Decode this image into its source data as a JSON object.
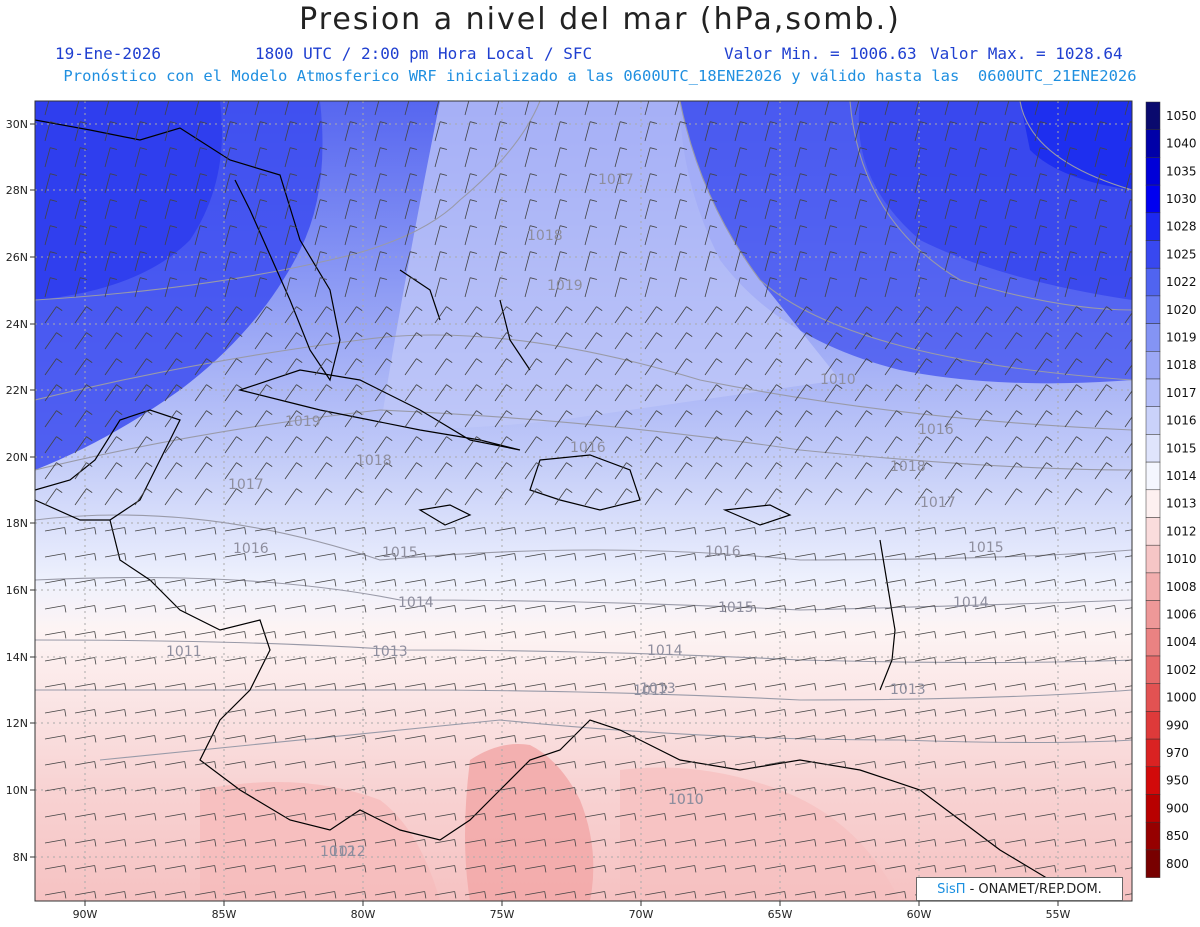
{
  "header": {
    "title": "Presion a nivel del mar (hPa,somb.)",
    "date": "19-Ene-2026",
    "time": "1800 UTC / 2:00 pm Hora Local / SFC",
    "min": "Valor Min. = 1006.63",
    "max": "Valor Max. = 1028.64",
    "model_line": "Pronóstico con el Modelo Atmosferico WRF inicializado a las 0600UTC_18ENE2026 y válido hasta las  0600UTC_21ENE2026"
  },
  "axes": {
    "lat_labels": [
      "30N",
      "28N",
      "26N",
      "24N",
      "22N",
      "20N",
      "18N",
      "16N",
      "14N",
      "12N",
      "10N",
      "8N"
    ],
    "lon_labels": [
      "90W",
      "85W",
      "80W",
      "75W",
      "70W",
      "65W",
      "60W",
      "55W"
    ]
  },
  "legend": {
    "levels": [
      "1050",
      "1040",
      "1035",
      "1030",
      "1028",
      "1025",
      "1022",
      "1020",
      "1019",
      "1018",
      "1017",
      "1016",
      "1015",
      "1014",
      "1013",
      "1012",
      "1010",
      "1008",
      "1006",
      "1004",
      "1002",
      "1000",
      "990",
      "970",
      "950",
      "900",
      "850",
      "800"
    ],
    "colors": [
      "#0a0a6e",
      "#0000a8",
      "#0000d8",
      "#0000f0",
      "#1c28f0",
      "#3848f0",
      "#5064f0",
      "#6a7cf2",
      "#8494f4",
      "#9ca8f6",
      "#b4bef8",
      "#cad2fa",
      "#dfe4fc",
      "#f4f6fe",
      "#fdf0f0",
      "#fadcdc",
      "#f6c6c6",
      "#f2aeae",
      "#ee9898",
      "#ea8282",
      "#e66a6a",
      "#e25252",
      "#de3a3a",
      "#da2222",
      "#d20a0a",
      "#b80000",
      "#960000",
      "#780000"
    ]
  },
  "isobar_labels": [
    "1017",
    "1018",
    "1019",
    "1019",
    "1018",
    "1017",
    "1016",
    "1015",
    "1014",
    "1013",
    "1012",
    "1011",
    "1010",
    "1016",
    "1016",
    "1015",
    "1014",
    "1013",
    "1012",
    "1010",
    "1018",
    "1017",
    "1016",
    "1015",
    "1014",
    "1013",
    "1012",
    "1010"
  ],
  "credit": {
    "brand": "SisΠ",
    "text": "- ONAMET/REP.DOM."
  }
}
